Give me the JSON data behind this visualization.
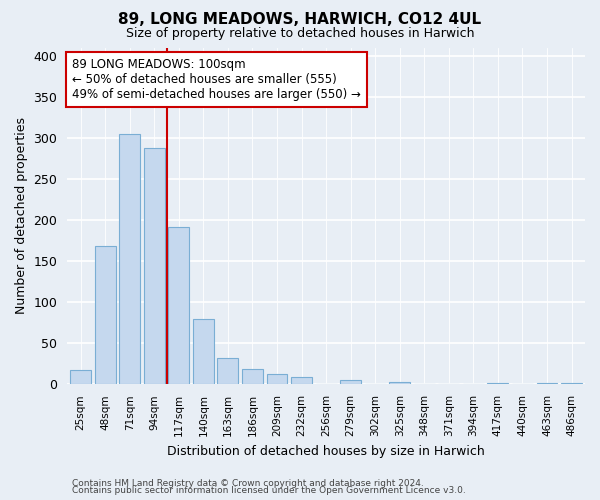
{
  "title": "89, LONG MEADOWS, HARWICH, CO12 4UL",
  "subtitle": "Size of property relative to detached houses in Harwich",
  "xlabel": "Distribution of detached houses by size in Harwich",
  "ylabel": "Number of detached properties",
  "categories": [
    "25sqm",
    "48sqm",
    "71sqm",
    "94sqm",
    "117sqm",
    "140sqm",
    "163sqm",
    "186sqm",
    "209sqm",
    "232sqm",
    "256sqm",
    "279sqm",
    "302sqm",
    "325sqm",
    "348sqm",
    "371sqm",
    "394sqm",
    "417sqm",
    "440sqm",
    "463sqm",
    "486sqm"
  ],
  "values": [
    17,
    168,
    305,
    288,
    191,
    79,
    32,
    19,
    12,
    9,
    0,
    5,
    0,
    3,
    0,
    0,
    0,
    2,
    0,
    2,
    2
  ],
  "bar_color": "#c5d8ee",
  "bar_edge_color": "#7aaed4",
  "vline_color": "#cc0000",
  "annotation_title": "89 LONG MEADOWS: 100sqm",
  "annotation_line1": "← 50% of detached houses are smaller (555)",
  "annotation_line2": "49% of semi-detached houses are larger (550) →",
  "annotation_box_color": "#ffffff",
  "annotation_box_edge": "#cc0000",
  "ylim": [
    0,
    410
  ],
  "yticks": [
    0,
    50,
    100,
    150,
    200,
    250,
    300,
    350,
    400
  ],
  "footer1": "Contains HM Land Registry data © Crown copyright and database right 2024.",
  "footer2": "Contains public sector information licensed under the Open Government Licence v3.0.",
  "bg_color": "#e8eef5",
  "plot_bg_color": "#e8eef5"
}
